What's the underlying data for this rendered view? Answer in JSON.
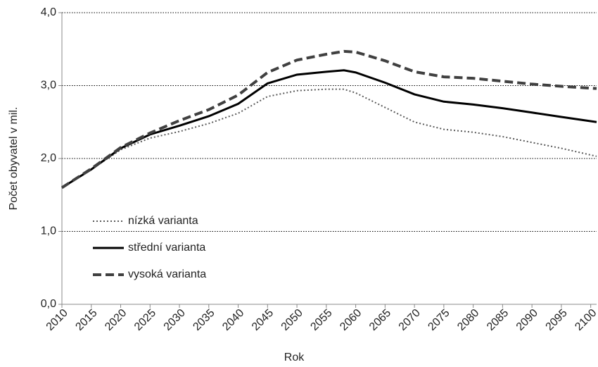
{
  "chart_data": {
    "type": "line",
    "x_label": "Rok",
    "y_label": "Počet obyvatel v mil.",
    "x": [
      2010,
      2015,
      2020,
      2025,
      2030,
      2035,
      2040,
      2045,
      2050,
      2055,
      2058,
      2060,
      2065,
      2070,
      2075,
      2080,
      2085,
      2090,
      2095,
      2101
    ],
    "series": [
      {
        "name": "nízká varianta",
        "color": "#595959",
        "style": "dotted",
        "values": [
          1.6,
          1.85,
          2.12,
          2.28,
          2.37,
          2.48,
          2.62,
          2.85,
          2.93,
          2.95,
          2.95,
          2.9,
          2.7,
          2.5,
          2.4,
          2.36,
          2.3,
          2.22,
          2.14,
          2.03
        ]
      },
      {
        "name": "střední varianta",
        "color": "#000000",
        "style": "solid",
        "values": [
          1.6,
          1.85,
          2.14,
          2.33,
          2.45,
          2.58,
          2.75,
          3.03,
          3.15,
          3.19,
          3.21,
          3.18,
          3.04,
          2.88,
          2.78,
          2.74,
          2.69,
          2.63,
          2.57,
          2.5
        ]
      },
      {
        "name": "vysoká varianta",
        "color": "#404040",
        "style": "dashed",
        "values": [
          1.6,
          1.86,
          2.15,
          2.35,
          2.52,
          2.67,
          2.87,
          3.18,
          3.35,
          3.43,
          3.47,
          3.46,
          3.34,
          3.19,
          3.12,
          3.1,
          3.06,
          3.02,
          2.99,
          2.96
        ]
      }
    ],
    "xlim": [
      2010,
      2101
    ],
    "xticks": [
      2010,
      2015,
      2020,
      2025,
      2030,
      2035,
      2040,
      2045,
      2050,
      2055,
      2060,
      2065,
      2070,
      2075,
      2080,
      2085,
      2090,
      2095,
      2100
    ],
    "ylim": [
      0,
      4
    ],
    "yticks": [
      {
        "value": 0,
        "label": "0,0"
      },
      {
        "value": 1,
        "label": "1,0"
      },
      {
        "value": 2,
        "label": "2,0"
      },
      {
        "value": 3,
        "label": "3,0"
      },
      {
        "value": 4,
        "label": "4,0"
      }
    ],
    "grid": true,
    "legend": "lower-left"
  }
}
